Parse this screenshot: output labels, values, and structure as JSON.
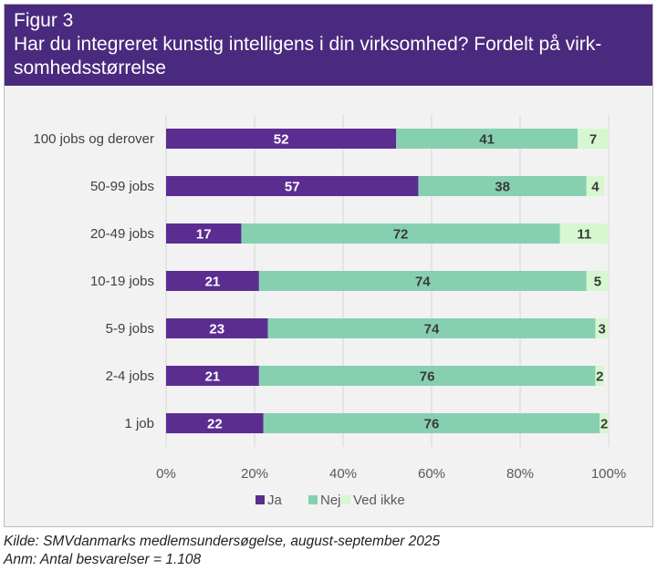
{
  "figure": {
    "label": "Figur 3",
    "title": "Har du integreret kunstig intelligens i din virksomhed? Fordelt på virk-somhedsstørrelse"
  },
  "chart_data": {
    "type": "bar",
    "orientation": "horizontal",
    "stacked": true,
    "categories": [
      "100 jobs og derover",
      "50-99 jobs",
      "20-49 jobs",
      "10-19 jobs",
      "5-9 jobs",
      "2-4 jobs",
      "1 job"
    ],
    "series": [
      {
        "name": "Ja",
        "color": "#5b2d91",
        "label_color": "#ffffff",
        "values": [
          52,
          57,
          17,
          21,
          23,
          21,
          22
        ]
      },
      {
        "name": "Nej",
        "color": "#86d0b1",
        "label_color": "#3a3a3a",
        "values": [
          41,
          38,
          72,
          74,
          74,
          76,
          76
        ]
      },
      {
        "name": "Ved ikke",
        "color": "#d6f7d0",
        "label_color": "#3a3a3a",
        "values": [
          7,
          4,
          11,
          5,
          3,
          2,
          2
        ]
      }
    ],
    "xlim": [
      0,
      100
    ],
    "xticks": [
      "0%",
      "20%",
      "40%",
      "60%",
      "80%",
      "100%"
    ],
    "grid": true,
    "legend": "bottom",
    "xlabel": "",
    "ylabel": ""
  },
  "notes": {
    "source": "Kilde: SMVdanmarks medlemsundersøgelse, august-september 2025",
    "annotation": "Anm: Antal besvarelser = 1.108"
  }
}
